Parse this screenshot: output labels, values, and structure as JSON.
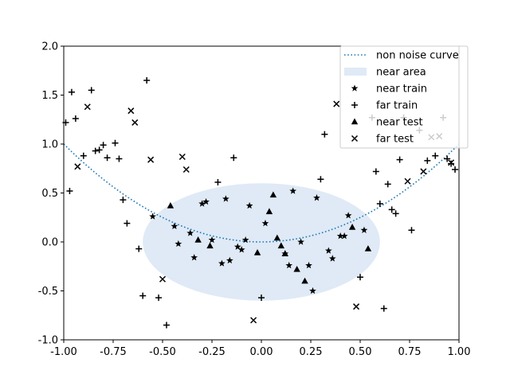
{
  "chart_data": {
    "type": "scatter",
    "xlim": [
      -1.0,
      1.0
    ],
    "ylim": [
      -1.0,
      2.0
    ],
    "xticks": [
      "-1.00",
      "-0.75",
      "-0.50",
      "-0.25",
      "0.00",
      "0.25",
      "0.50",
      "0.75",
      "1.00"
    ],
    "yticks": [
      "-1.0",
      "-0.5",
      "0.0",
      "0.5",
      "1.0",
      "1.5",
      "2.0"
    ],
    "legend_position": "top-right",
    "grid": false,
    "colors": {
      "curve": "#1f77b4",
      "near_area": "#dfeaf6",
      "markers": "#000000"
    },
    "curve": {
      "name": "non noise curve",
      "function": "y = x^2",
      "style": "dotted"
    },
    "near_area": {
      "name": "near area",
      "center": [
        0.0,
        0.0
      ],
      "radius_x": 0.6,
      "radius_y": 0.6
    },
    "series": [
      {
        "name": "near train",
        "marker": "star",
        "points": [
          [
            -0.55,
            0.26
          ],
          [
            -0.44,
            0.16
          ],
          [
            -0.42,
            -0.02
          ],
          [
            -0.36,
            0.09
          ],
          [
            -0.34,
            -0.16
          ],
          [
            -0.3,
            0.39
          ],
          [
            -0.28,
            0.41
          ],
          [
            -0.25,
            0.02
          ],
          [
            -0.2,
            -0.22
          ],
          [
            -0.18,
            0.44
          ],
          [
            -0.16,
            -0.19
          ],
          [
            -0.12,
            -0.05
          ],
          [
            -0.1,
            -0.08
          ],
          [
            -0.08,
            0.02
          ],
          [
            -0.06,
            0.37
          ],
          [
            0.02,
            0.19
          ],
          [
            0.12,
            -0.12
          ],
          [
            0.14,
            -0.24
          ],
          [
            0.16,
            0.52
          ],
          [
            0.2,
            0.0
          ],
          [
            0.24,
            -0.24
          ],
          [
            0.26,
            -0.5
          ],
          [
            0.28,
            0.45
          ],
          [
            0.34,
            -0.09
          ],
          [
            0.36,
            -0.17
          ],
          [
            0.4,
            0.06
          ],
          [
            0.42,
            0.06
          ],
          [
            0.44,
            0.27
          ],
          [
            0.52,
            0.12
          ]
        ]
      },
      {
        "name": "far train",
        "marker": "plus",
        "points": [
          [
            -0.99,
            1.22
          ],
          [
            -0.97,
            0.52
          ],
          [
            -0.96,
            1.53
          ],
          [
            -0.94,
            1.26
          ],
          [
            -0.9,
            0.88
          ],
          [
            -0.86,
            1.55
          ],
          [
            -0.84,
            0.93
          ],
          [
            -0.82,
            0.94
          ],
          [
            -0.8,
            0.99
          ],
          [
            -0.78,
            0.86
          ],
          [
            -0.74,
            1.01
          ],
          [
            -0.72,
            0.85
          ],
          [
            -0.7,
            0.43
          ],
          [
            -0.68,
            0.19
          ],
          [
            -0.62,
            -0.07
          ],
          [
            -0.6,
            -0.55
          ],
          [
            -0.58,
            1.65
          ],
          [
            -0.52,
            -0.57
          ],
          [
            -0.48,
            -0.85
          ],
          [
            -0.22,
            0.61
          ],
          [
            -0.14,
            0.86
          ],
          [
            0.0,
            -0.57
          ],
          [
            0.3,
            0.64
          ],
          [
            0.32,
            1.1
          ],
          [
            0.5,
            -0.36
          ],
          [
            0.56,
            1.27
          ],
          [
            0.58,
            0.72
          ],
          [
            0.6,
            0.39
          ],
          [
            0.62,
            -0.68
          ],
          [
            0.64,
            0.59
          ],
          [
            0.66,
            0.33
          ],
          [
            0.68,
            0.29
          ],
          [
            0.7,
            0.84
          ],
          [
            0.72,
            1.27
          ],
          [
            0.76,
            0.12
          ],
          [
            0.8,
            1.14
          ],
          [
            0.84,
            0.83
          ],
          [
            0.88,
            0.88
          ],
          [
            0.92,
            1.27
          ],
          [
            0.94,
            0.85
          ],
          [
            0.96,
            0.8
          ],
          [
            0.98,
            0.74
          ]
        ]
      },
      {
        "name": "near test",
        "marker": "triangle",
        "points": [
          [
            -0.46,
            0.37
          ],
          [
            -0.32,
            0.02
          ],
          [
            -0.26,
            -0.04
          ],
          [
            -0.02,
            -0.11
          ],
          [
            0.04,
            0.31
          ],
          [
            0.06,
            0.48
          ],
          [
            0.08,
            0.04
          ],
          [
            0.1,
            -0.04
          ],
          [
            0.12,
            -0.12
          ],
          [
            0.18,
            -0.28
          ],
          [
            0.22,
            -0.4
          ],
          [
            0.46,
            0.15
          ],
          [
            0.54,
            -0.07
          ]
        ]
      },
      {
        "name": "far test",
        "marker": "x",
        "points": [
          [
            -0.93,
            0.77
          ],
          [
            -0.88,
            1.38
          ],
          [
            -0.66,
            1.34
          ],
          [
            -0.64,
            1.22
          ],
          [
            -0.56,
            0.84
          ],
          [
            -0.5,
            -0.38
          ],
          [
            -0.4,
            0.87
          ],
          [
            -0.38,
            0.74
          ],
          [
            -0.04,
            -0.8
          ],
          [
            0.38,
            1.41
          ],
          [
            0.48,
            -0.66
          ],
          [
            0.74,
            0.62
          ],
          [
            0.82,
            0.72
          ],
          [
            0.86,
            1.07
          ],
          [
            0.9,
            1.08
          ],
          [
            0.96,
            0.81
          ]
        ]
      }
    ]
  }
}
